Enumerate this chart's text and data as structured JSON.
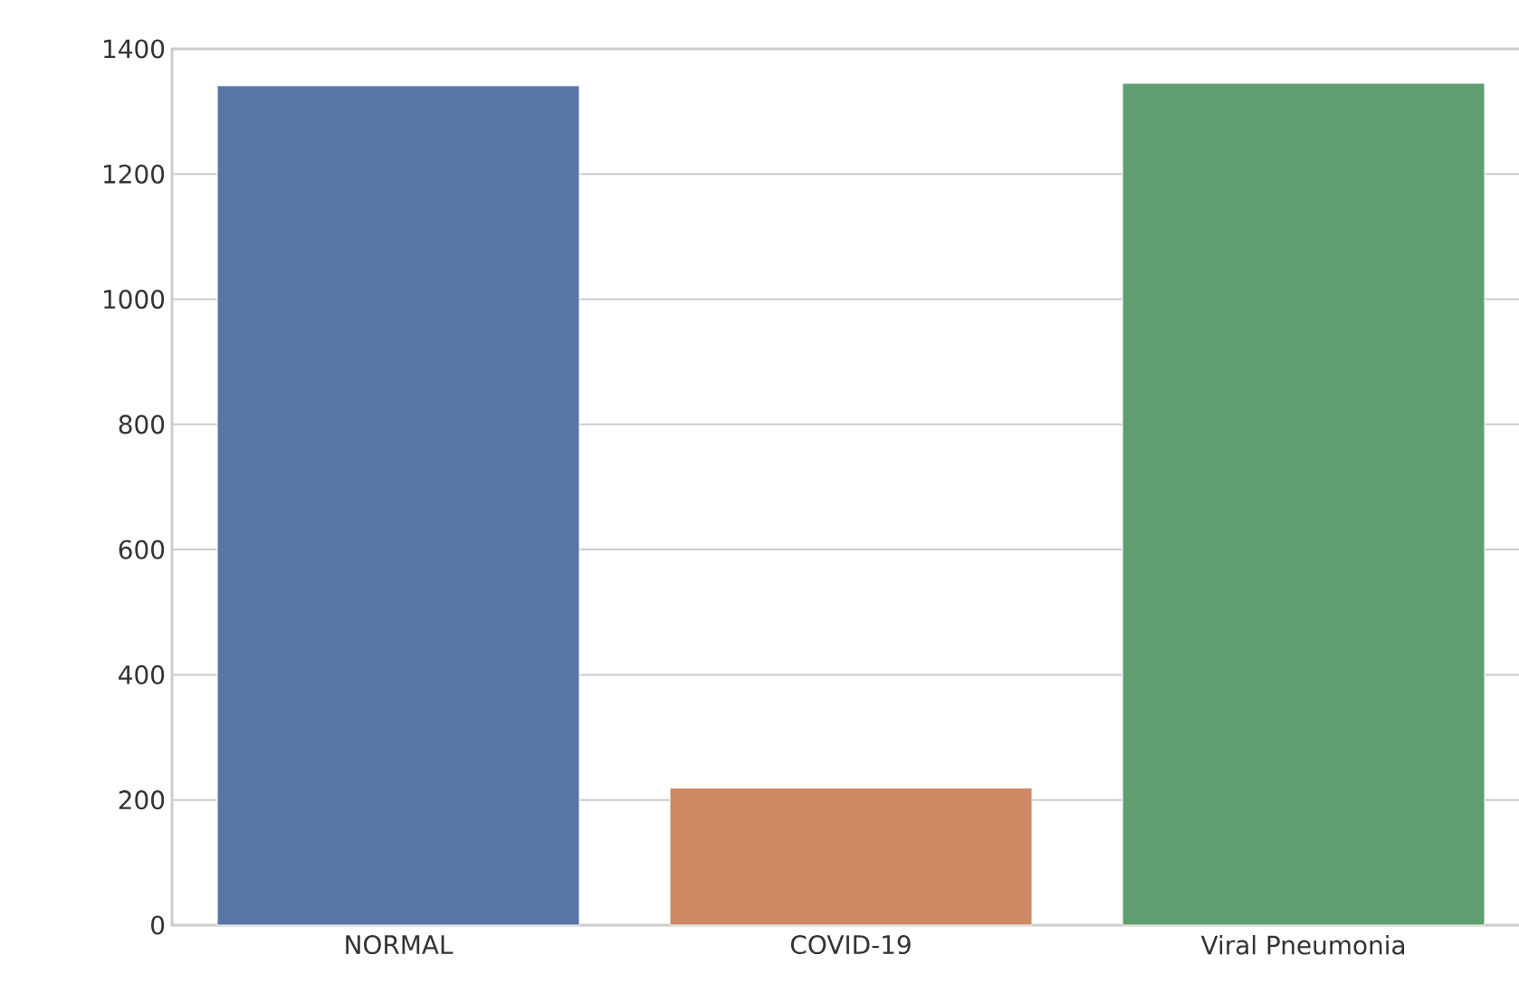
{
  "chart_data": {
    "type": "bar",
    "categories": [
      "NORMAL",
      "COVID-19",
      "Viral Pneumonia"
    ],
    "values": [
      1341,
      219,
      1345
    ],
    "colors": [
      "#5875a4",
      "#cc8963",
      "#5f9e6e"
    ],
    "ylim": [
      0,
      1400
    ],
    "yticks": [
      0,
      200,
      400,
      600,
      800,
      1000,
      1200,
      1400
    ],
    "grid": "y"
  }
}
